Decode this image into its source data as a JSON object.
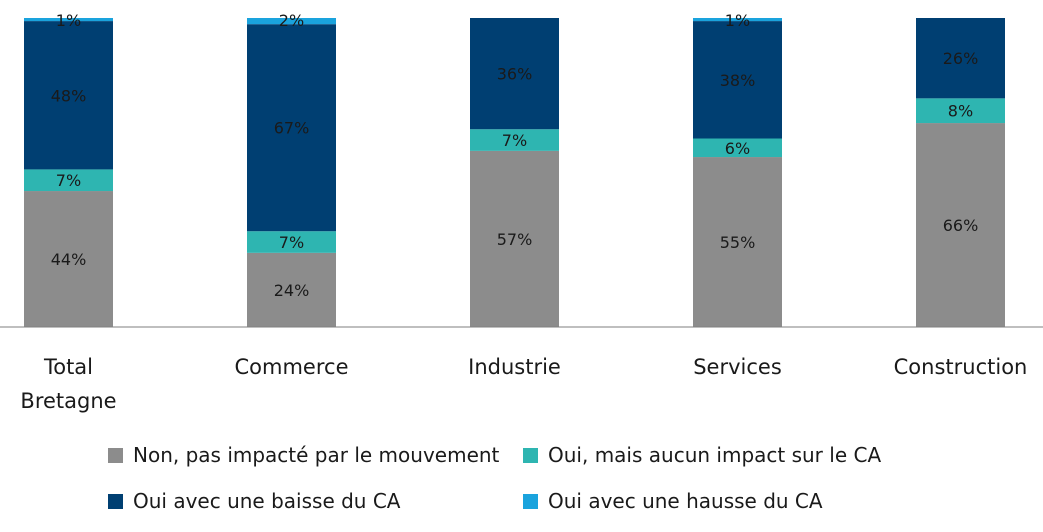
{
  "chart_data": {
    "type": "bar",
    "stacked": true,
    "categories": [
      [
        "Total",
        "Bretagne"
      ],
      [
        "Commerce"
      ],
      [
        "Industrie"
      ],
      [
        "Services"
      ],
      [
        "Construction"
      ]
    ],
    "ylim": [
      0,
      100
    ],
    "grid": false,
    "legend_position": "bottom",
    "series": [
      {
        "name": "Non, pas impacté par le mouvement",
        "color": "#8c8c8c",
        "values": [
          44,
          24,
          57,
          55,
          66
        ],
        "labels": [
          "44%",
          "24%",
          "57%",
          "55%",
          "66%"
        ]
      },
      {
        "name": "Oui, mais aucun impact sur le CA",
        "color": "#2eb5b1",
        "values": [
          7,
          7,
          7,
          6,
          8
        ],
        "labels": [
          "7%",
          "7%",
          "7%",
          "6%",
          "8%"
        ]
      },
      {
        "name": "Oui avec  une baisse du CA",
        "color": "#003f72",
        "values": [
          48,
          67,
          36,
          38,
          26
        ],
        "labels": [
          "48%",
          "67%",
          "36%",
          "38%",
          "26%"
        ]
      },
      {
        "name": "Oui avec une hausse du CA",
        "color": "#1aa3dd",
        "values": [
          1,
          2,
          0,
          1,
          0
        ],
        "labels": [
          "1%",
          "2%",
          "",
          "1%",
          ""
        ]
      }
    ]
  }
}
